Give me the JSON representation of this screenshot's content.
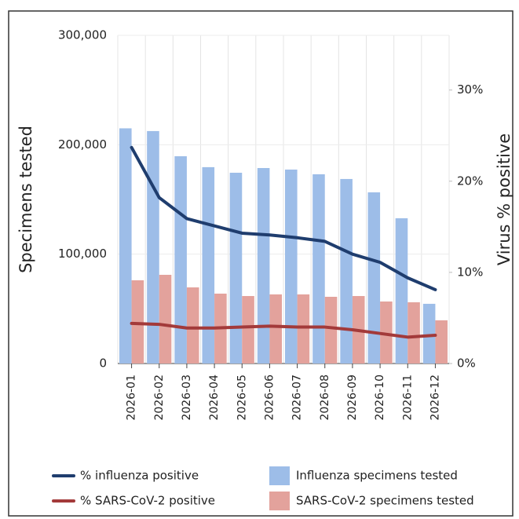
{
  "chart_data": {
    "type": "bar",
    "categories": [
      "2026-01",
      "2026-02",
      "2026-03",
      "2026-04",
      "2026-05",
      "2026-06",
      "2026-07",
      "2026-08",
      "2026-09",
      "2026-10",
      "2026-11",
      "2026-12"
    ],
    "ylabel": "Specimens tested",
    "y2label": "Virus % positive",
    "ylim": [
      0,
      300000
    ],
    "yticks": [
      0,
      {
        "value": 100000,
        "label": "100,000"
      },
      {
        "value": 200000,
        "label": "200,000"
      },
      {
        "value": 300000,
        "label": "300,000"
      }
    ],
    "y2lim": [
      0,
      36
    ],
    "y2ticks": [
      {
        "value": 0,
        "label": "0%"
      },
      {
        "value": 10,
        "label": "10%"
      },
      {
        "value": 20,
        "label": "20%"
      },
      {
        "value": 30,
        "label": "30%"
      }
    ],
    "grid": true,
    "series": [
      {
        "name": "% influenza positive",
        "type": "line",
        "axis": "y2",
        "color": "#1f3d6e",
        "values": [
          23.7,
          18.2,
          15.9,
          15.1,
          14.3,
          14.1,
          13.8,
          13.4,
          12.0,
          11.1,
          9.4,
          8.1
        ]
      },
      {
        "name": "Influenza specimens tested",
        "type": "bar",
        "color": "#9dbde8",
        "values": [
          215000,
          212500,
          189500,
          179500,
          174400,
          178700,
          177300,
          173000,
          168700,
          156500,
          132800,
          54600
        ]
      },
      {
        "name": "% SARS-CoV-2 positive",
        "type": "line",
        "axis": "y2",
        "color": "#a33a3a",
        "values": [
          4.4,
          4.3,
          3.9,
          3.9,
          4.0,
          4.1,
          4.0,
          4.0,
          3.7,
          3.3,
          2.9,
          3.1
        ]
      },
      {
        "name": "SARS-CoV-2 specimens tested",
        "type": "bar",
        "color": "#e3a29c",
        "values": [
          76100,
          81100,
          69600,
          63900,
          61700,
          63200,
          63200,
          61000,
          61700,
          56700,
          56000,
          39500
        ]
      }
    ]
  }
}
